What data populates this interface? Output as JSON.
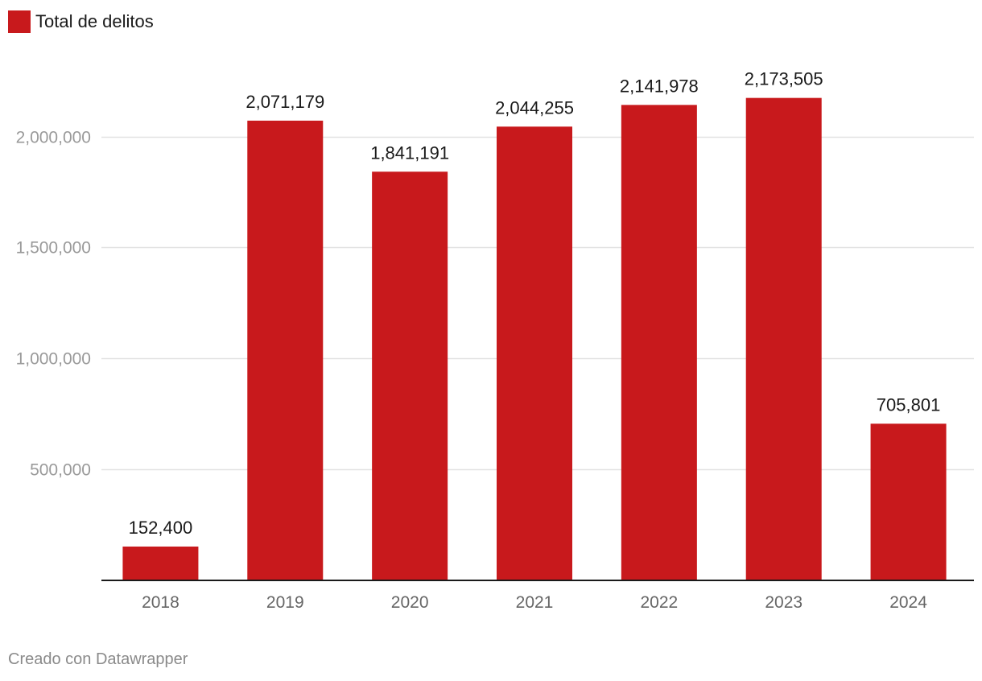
{
  "chart_data": {
    "type": "bar",
    "categories": [
      "2018",
      "2019",
      "2020",
      "2021",
      "2022",
      "2023",
      "2024"
    ],
    "series": [
      {
        "name": "Total de delitos",
        "values": [
          152400,
          2071179,
          1841191,
          2044255,
          2141978,
          2173505,
          705801
        ],
        "data_labels": [
          "152,400",
          "2,071,179",
          "1,841,191",
          "2,044,255",
          "2,141,978",
          "2,173,505",
          "705,801"
        ]
      }
    ],
    "yticks": [
      500000,
      1000000,
      1500000,
      2000000
    ],
    "ytick_labels": [
      "500,000",
      "1,000,000",
      "1,500,000",
      "2,000,000"
    ],
    "ylim": [
      0,
      2000000
    ],
    "grid": true,
    "legend_position": "top-left",
    "colors": {
      "bar": "#c8191c",
      "grid": "#e2e2e2",
      "axis": "#1a1a1a",
      "tick_label": "#9a9a9a",
      "category_label": "#666666",
      "data_label": "#1a1a1a"
    }
  },
  "legend": {
    "label": "Total de delitos"
  },
  "footer": {
    "credit": "Creado con Datawrapper"
  }
}
